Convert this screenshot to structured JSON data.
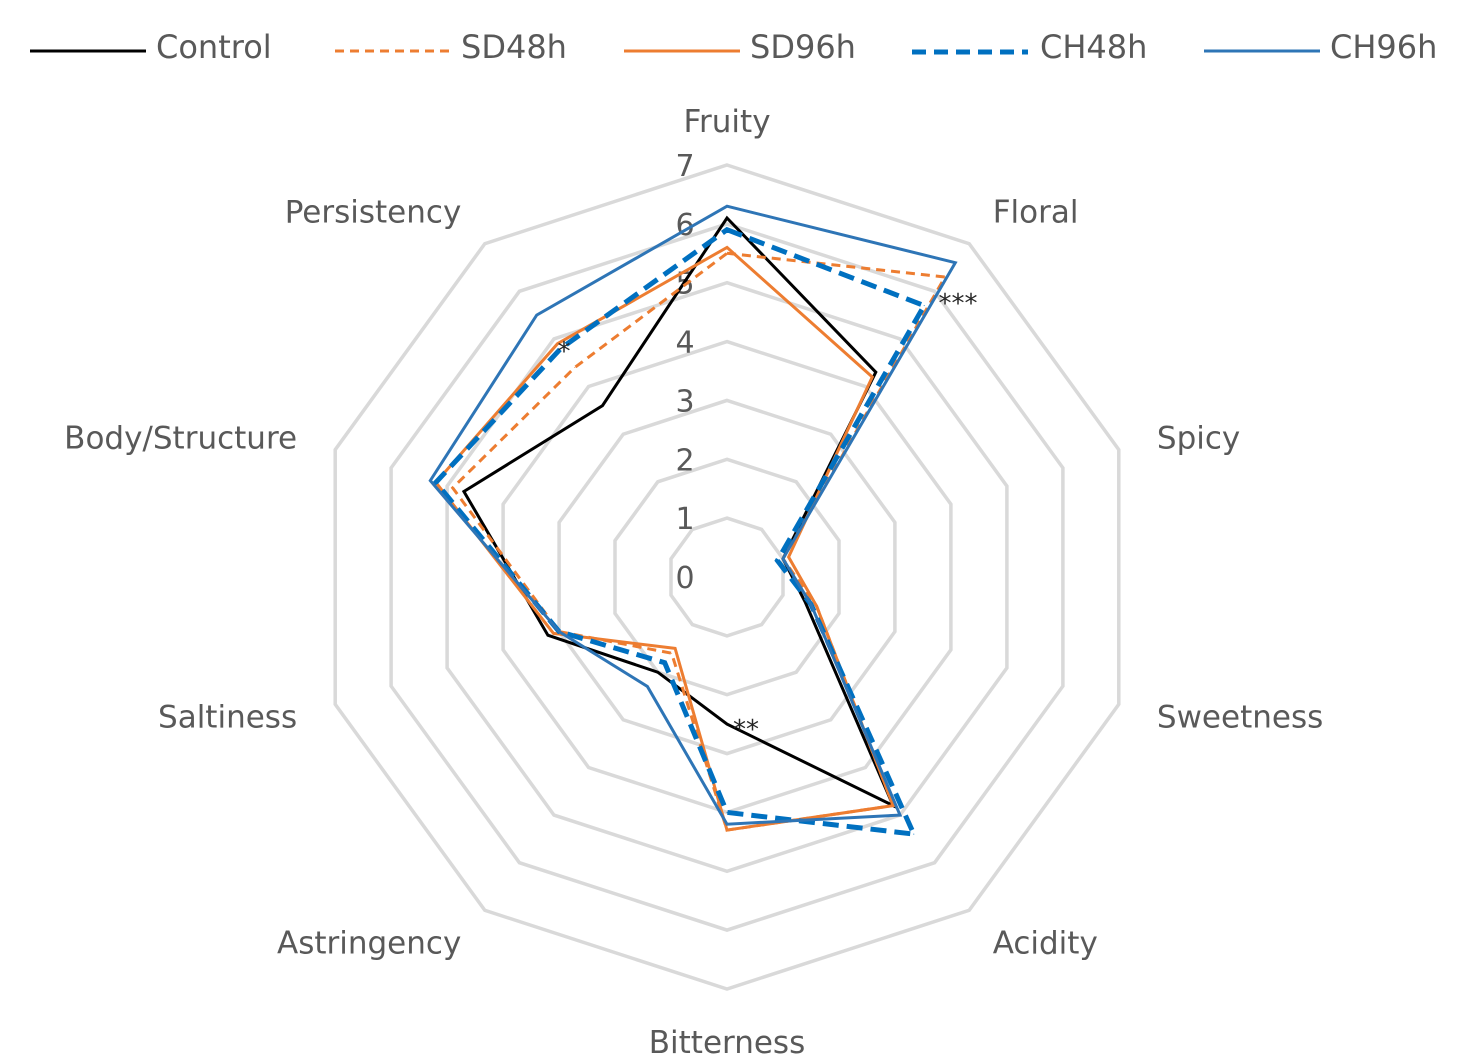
{
  "chart_data": {
    "type": "radar",
    "categories": [
      "Fruity",
      "Floral",
      "Spicy",
      "Sweetness",
      "Acidity",
      "Bitterness",
      "Astringency",
      "Saltiness",
      "Body/Structure",
      "Persistency"
    ],
    "rlim": [
      0,
      7
    ],
    "ticks": [
      "0",
      "1",
      "2",
      "3",
      "4",
      "5",
      "6",
      "7"
    ],
    "grid": true,
    "legend_position": "top",
    "series": [
      {
        "name": "Control",
        "color": "#000000",
        "dash": "solid",
        "values": [
          6.1,
          4.3,
          1.0,
          1.4,
          4.8,
          2.5,
          2.0,
          3.2,
          4.7,
          3.6
        ]
      },
      {
        "name": "SD48h",
        "color": "#ED7D31",
        "dash": "dashed",
        "values": [
          5.5,
          6.3,
          1.0,
          1.6,
          4.8,
          4.3,
          1.6,
          3.0,
          4.9,
          4.4
        ]
      },
      {
        "name": "SD96h",
        "color": "#ED7D31",
        "dash": "solid",
        "values": [
          5.6,
          4.2,
          1.1,
          1.6,
          4.8,
          4.3,
          1.5,
          3.1,
          5.2,
          4.9
        ]
      },
      {
        "name": "CH48h",
        "color": "#0070C0",
        "dash": "dashed",
        "values": [
          5.9,
          5.7,
          0.9,
          1.5,
          5.4,
          4.0,
          1.8,
          3.0,
          5.2,
          4.8
        ]
      },
      {
        "name": "CH96h",
        "color": "#2E75B6",
        "dash": "solid",
        "values": [
          6.3,
          6.6,
          1.0,
          1.5,
          5.0,
          4.2,
          2.3,
          3.0,
          5.3,
          5.5
        ]
      }
    ],
    "annotations": [
      {
        "text": "***",
        "category": "Floral"
      },
      {
        "text": "**",
        "category": "Bitterness"
      },
      {
        "text": "*",
        "category": "Persistency"
      }
    ]
  }
}
